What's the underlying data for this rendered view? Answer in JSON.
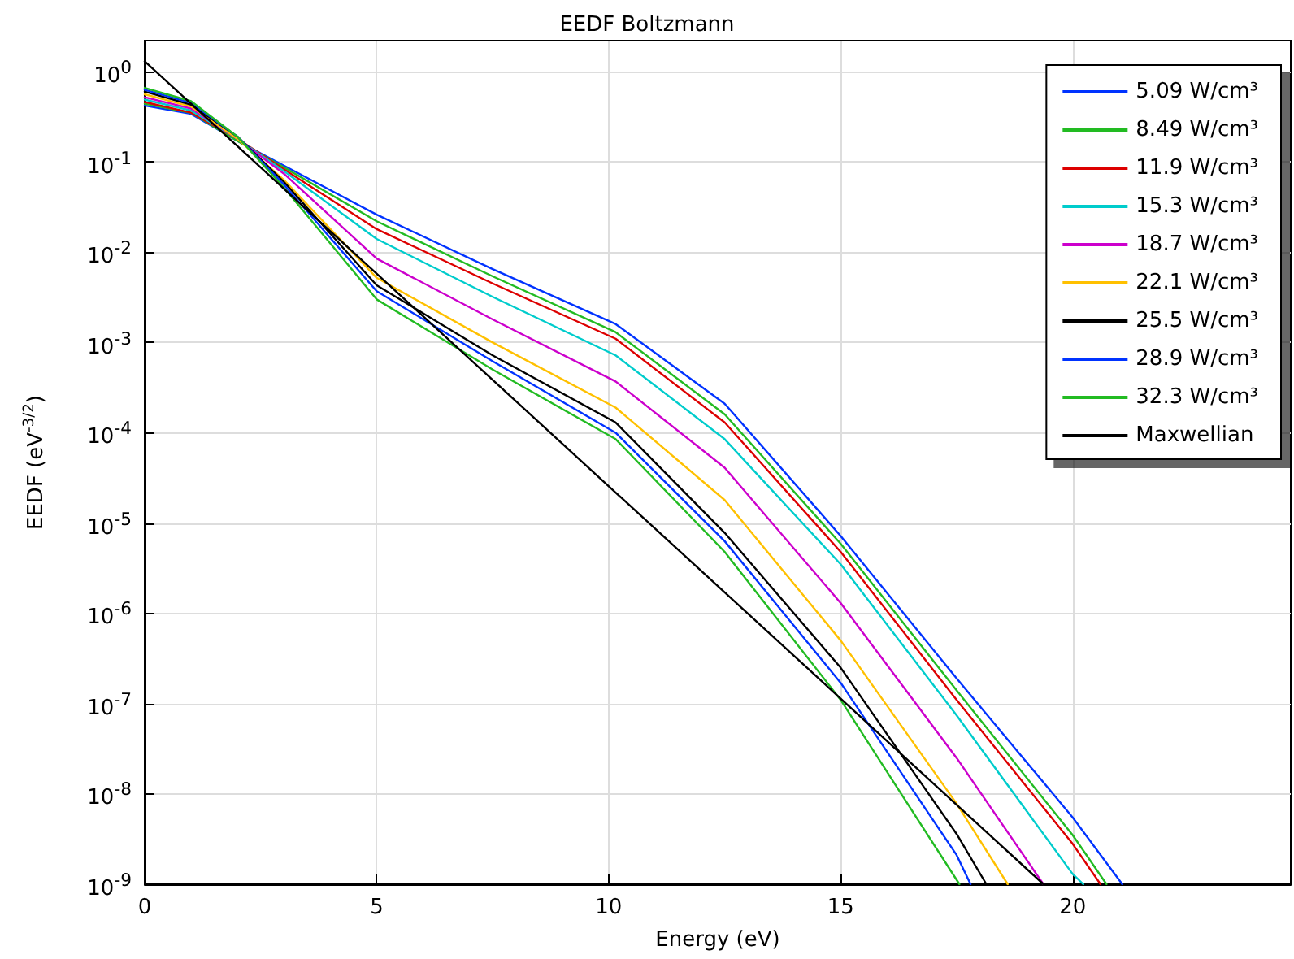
{
  "chart_data": {
    "type": "line",
    "title": "EEDF Boltzmann",
    "xlabel": "Energy (eV)",
    "ylabel": "EEDF (eV$^{-3/2}$)",
    "log": "y",
    "grid": true,
    "legend": "top right",
    "marker": "none",
    "line_style": "solid",
    "xlim": [
      0,
      24.7
    ],
    "xticks": [
      0,
      5,
      10,
      15,
      20
    ],
    "ylim": [
      1e-09,
      2.2
    ],
    "yticks": [
      {
        "value": 1,
        "label": "10$^{0}$"
      },
      {
        "value": 0.1,
        "label": "10$^{-1}$"
      },
      {
        "value": 0.01,
        "label": "10$^{-2}$"
      },
      {
        "value": 0.001,
        "label": "10$^{-3}$"
      },
      {
        "value": 0.0001,
        "label": "10$^{-4}$"
      },
      {
        "value": 1e-05,
        "label": "10$^{-5}$"
      },
      {
        "value": 1e-06,
        "label": "10$^{-6}$"
      },
      {
        "value": 1e-07,
        "label": "10$^{-7}$"
      },
      {
        "value": 1e-08,
        "label": "10$^{-8}$"
      },
      {
        "value": 1e-09,
        "label": "10$^{-9}$"
      }
    ],
    "series": [
      {
        "name": "5.09 W/cm³",
        "color": "#0033ff",
        "x": [
          0,
          1,
          2,
          3,
          5,
          7.5,
          10.15,
          12.5,
          15,
          17.5,
          20,
          21.07
        ],
        "values": [
          0.42,
          0.34,
          0.17,
          0.091,
          0.026,
          0.0065,
          0.0016,
          0.00021,
          7.2e-06,
          1.9e-07,
          5.5e-09,
          1e-09
        ]
      },
      {
        "name": "8.49 W/cm³",
        "color": "#22bb22",
        "x": [
          0,
          1,
          2,
          3,
          5,
          7.5,
          10.15,
          12.5,
          15,
          17.5,
          20,
          20.73
        ],
        "values": [
          0.44,
          0.35,
          0.17,
          0.087,
          0.022,
          0.0054,
          0.0013,
          0.00016,
          5.9e-06,
          1.4e-07,
          3.5e-09,
          1e-09
        ]
      },
      {
        "name": "11.9 W/cm³",
        "color": "#dd0000",
        "x": [
          0,
          1,
          2,
          3,
          5,
          7.5,
          10.15,
          12.5,
          15,
          17.5,
          20,
          20.6
        ],
        "values": [
          0.46,
          0.35,
          0.18,
          0.083,
          0.018,
          0.0045,
          0.0011,
          0.00013,
          4.8e-06,
          1.1e-07,
          2.8e-09,
          1e-09
        ]
      },
      {
        "name": "15.3 W/cm³",
        "color": "#00cccc",
        "x": [
          0,
          1,
          2,
          3,
          5,
          7.5,
          10.15,
          12.5,
          15,
          17.5,
          20,
          20.23
        ],
        "values": [
          0.49,
          0.37,
          0.18,
          0.079,
          0.014,
          0.0032,
          0.00072,
          8.5e-05,
          3.5e-06,
          7.4e-08,
          1.3e-09,
          1e-09
        ]
      },
      {
        "name": "18.7 W/cm³",
        "color": "#cc00cc",
        "x": [
          0,
          1,
          2,
          3,
          5,
          7.5,
          10.15,
          12.5,
          15,
          17.5,
          19.37
        ],
        "values": [
          0.52,
          0.39,
          0.18,
          0.074,
          0.0085,
          0.0018,
          0.00037,
          4.1e-05,
          1.3e-06,
          2.5e-08,
          1e-09
        ]
      },
      {
        "name": "22.1 W/cm³",
        "color": "#ffc000",
        "x": [
          0,
          1,
          2,
          3,
          5,
          7.5,
          10.15,
          12.5,
          15,
          17.5,
          18.6
        ],
        "values": [
          0.56,
          0.41,
          0.18,
          0.063,
          0.0052,
          0.001,
          0.00019,
          1.8e-05,
          5e-07,
          7.8e-09,
          1e-09
        ]
      },
      {
        "name": "25.5 W/cm³",
        "color": "#000000",
        "x": [
          0,
          1,
          2,
          3,
          5,
          7.5,
          10.15,
          12.5,
          15,
          17.5,
          18.14
        ],
        "values": [
          0.6,
          0.43,
          0.19,
          0.06,
          0.0043,
          0.00072,
          0.00013,
          7.8e-06,
          2.5e-07,
          3.6e-09,
          1e-09
        ]
      },
      {
        "name": "28.9 W/cm³",
        "color": "#0033ff",
        "x": [
          0,
          1,
          2,
          3,
          5,
          7.5,
          10.15,
          12.5,
          15,
          17.5,
          17.8
        ],
        "values": [
          0.63,
          0.45,
          0.19,
          0.056,
          0.0037,
          0.00062,
          0.0001,
          6.3e-06,
          1.7e-07,
          2.1e-09,
          1e-09
        ]
      },
      {
        "name": "32.3 W/cm³",
        "color": "#22bb22",
        "x": [
          0,
          1,
          2,
          3,
          5,
          7.5,
          10.15,
          12.5,
          15,
          17.56
        ],
        "values": [
          0.66,
          0.47,
          0.19,
          0.052,
          0.003,
          0.0005,
          8.5e-05,
          4.8e-06,
          1.1e-07,
          1e-09
        ]
      },
      {
        "name": "Maxwellian",
        "color": "#000000",
        "x": [
          0,
          19.37
        ],
        "values": [
          1.3,
          1e-09
        ]
      }
    ]
  }
}
